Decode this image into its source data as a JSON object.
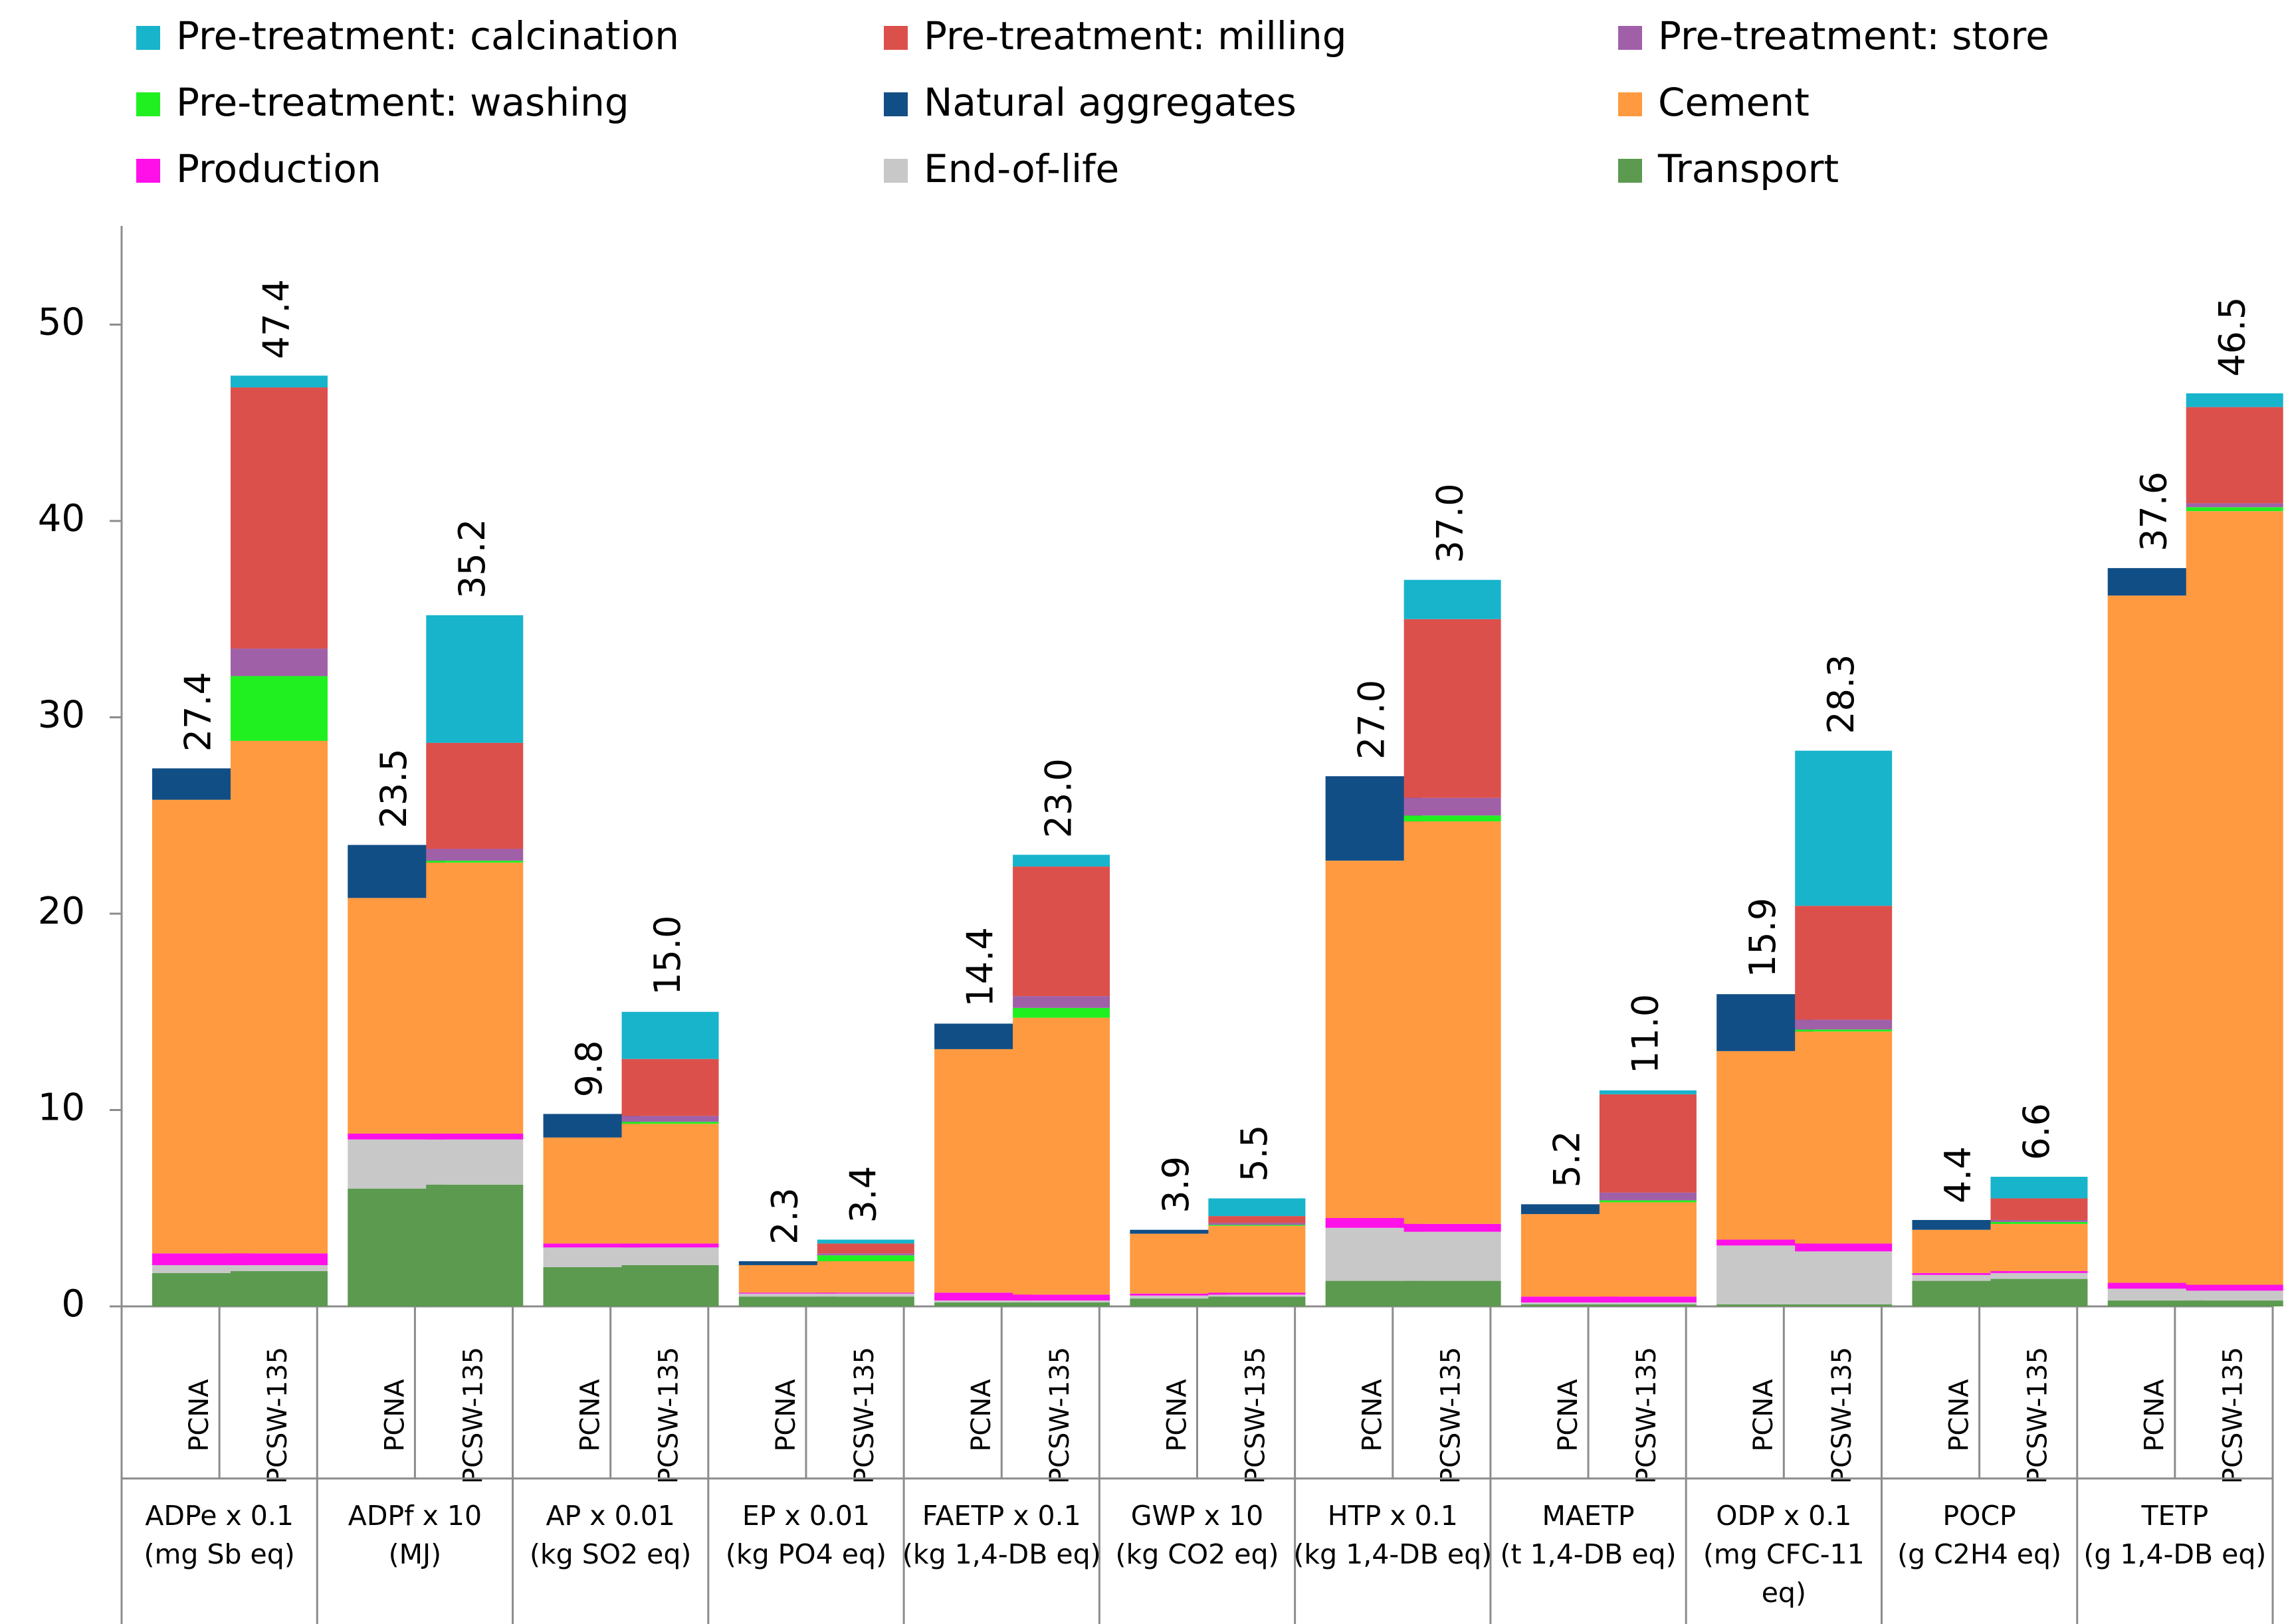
{
  "chart_data": {
    "type": "stacked-bar",
    "title": "",
    "xlabel": "",
    "ylabel": "",
    "ylim": [
      0,
      54
    ],
    "yticks": [
      0,
      10,
      20,
      30,
      40,
      50
    ],
    "grid": false,
    "legend_position": "top",
    "series": [
      {
        "name": "Transport",
        "color": "#5b9a4f"
      },
      {
        "name": "End-of-life",
        "color": "#c8c8c8"
      },
      {
        "name": "Production",
        "color": "#ff10e8"
      },
      {
        "name": "Cement",
        "color": "#ff9a40"
      },
      {
        "name": "Pre-treatment: washing",
        "color": "#20f020"
      },
      {
        "name": "Pre-treatment: store",
        "color": "#a060a8"
      },
      {
        "name": "Pre-treatment: milling",
        "color": "#dc504c"
      },
      {
        "name": "Pre-treatment: calcination",
        "color": "#18b4cc"
      },
      {
        "name": "Natural aggregates",
        "color": "#124e86"
      }
    ],
    "legend_order": [
      "Pre-treatment: calcination",
      "Pre-treatment: milling",
      "Pre-treatment: store",
      "Pre-treatment: washing",
      "Natural aggregates",
      "Cement",
      "Production",
      "End-of-life",
      "Transport"
    ],
    "categories": [
      {
        "line1": "ADPe x 0.1",
        "line2": "(mg Sb eq)",
        "line3": "",
        "bars": [
          {
            "condition": "PCNA",
            "total_label": "27.4",
            "values": [
              1.7,
              0.4,
              0.6,
              23.1,
              0,
              0,
              0,
              0,
              1.6
            ]
          },
          {
            "condition": "PCSW-135",
            "total_label": "47.4",
            "values": [
              1.8,
              0.3,
              0.6,
              26.1,
              3.3,
              1.4,
              13.3,
              0.6,
              0
            ]
          }
        ]
      },
      {
        "line1": "ADPf  x 10",
        "line2": "(MJ)",
        "line3": "",
        "bars": [
          {
            "condition": "PCNA",
            "total_label": "23.5",
            "values": [
              6.0,
              2.5,
              0.3,
              12.0,
              0,
              0,
              0,
              0,
              2.7
            ]
          },
          {
            "condition": "PCSW-135",
            "total_label": "35.2",
            "values": [
              6.2,
              2.3,
              0.3,
              13.8,
              0.1,
              0.6,
              5.4,
              6.5,
              0
            ]
          }
        ]
      },
      {
        "line1": "AP x 0.01",
        "line2": "(kg SO2 eq)",
        "line3": "",
        "bars": [
          {
            "condition": "PCNA",
            "total_label": "9.8",
            "values": [
              2.0,
              1.0,
              0.2,
              5.4,
              0,
              0,
              0,
              0,
              1.2
            ]
          },
          {
            "condition": "PCSW-135",
            "total_label": "15.0",
            "values": [
              2.1,
              0.9,
              0.2,
              6.1,
              0.1,
              0.3,
              2.9,
              2.4,
              0
            ]
          }
        ]
      },
      {
        "line1": "EP x 0.01",
        "line2": "(kg PO4 eq)",
        "line3": "",
        "bars": [
          {
            "condition": "PCNA",
            "total_label": "2.3",
            "values": [
              0.5,
              0.15,
              0.05,
              1.4,
              0,
              0,
              0,
              0,
              0.2
            ]
          },
          {
            "condition": "PCSW-135",
            "total_label": "3.4",
            "values": [
              0.5,
              0.15,
              0.05,
              1.6,
              0.3,
              0.1,
              0.5,
              0.2,
              0
            ]
          }
        ]
      },
      {
        "line1": "FAETP x 0.1",
        "line2": "(kg 1,4-DB eq)",
        "line3": "",
        "bars": [
          {
            "condition": "PCNA",
            "total_label": "14.4",
            "values": [
              0.2,
              0.1,
              0.4,
              12.4,
              0,
              0,
              0,
              0,
              1.3
            ]
          },
          {
            "condition": "PCSW-135",
            "total_label": "23.0",
            "values": [
              0.2,
              0.1,
              0.3,
              14.1,
              0.5,
              0.6,
              6.6,
              0.6,
              0
            ]
          }
        ]
      },
      {
        "line1": "GWP x 10",
        "line2": "(kg CO2 eq)",
        "line3": "",
        "bars": [
          {
            "condition": "PCNA",
            "total_label": "3.9",
            "values": [
              0.4,
              0.15,
              0.1,
              3.05,
              0,
              0,
              0,
              0,
              0.2
            ]
          },
          {
            "condition": "PCSW-135",
            "total_label": "5.5",
            "values": [
              0.5,
              0.1,
              0.1,
              3.4,
              0.05,
              0.1,
              0.35,
              0.9,
              0
            ]
          }
        ]
      },
      {
        "line1": "HTP x 0.1",
        "line2": "(kg 1,4-DB eq)",
        "line3": "",
        "bars": [
          {
            "condition": "PCNA",
            "total_label": "27.0",
            "values": [
              1.3,
              2.7,
              0.5,
              18.2,
              0,
              0,
              0,
              0,
              4.3
            ]
          },
          {
            "condition": "PCSW-135",
            "total_label": "37.0",
            "values": [
              1.3,
              2.5,
              0.4,
              20.5,
              0.3,
              0.9,
              9.1,
              2.0,
              0
            ]
          }
        ]
      },
      {
        "line1": "MAETP",
        "line2": "(t 1,4-DB eq)",
        "line3": "",
        "bars": [
          {
            "condition": "PCNA",
            "total_label": "5.2",
            "values": [
              0.1,
              0.1,
              0.3,
              4.2,
              0,
              0,
              0,
              0,
              0.5
            ]
          },
          {
            "condition": "PCSW-135",
            "total_label": "11.0",
            "values": [
              0.1,
              0.1,
              0.3,
              4.8,
              0.1,
              0.4,
              5.0,
              0.2,
              0
            ]
          }
        ]
      },
      {
        "line1": "ODP x 0.1",
        "line2": "(mg CFC-11",
        "line3": "eq)",
        "bars": [
          {
            "condition": "PCNA",
            "total_label": "15.9",
            "values": [
              0.1,
              3.0,
              0.3,
              9.6,
              0,
              0,
              0,
              0,
              2.9
            ]
          },
          {
            "condition": "PCSW-135",
            "total_label": "28.3",
            "values": [
              0.1,
              2.7,
              0.4,
              10.8,
              0.1,
              0.5,
              5.8,
              7.9,
              0
            ]
          }
        ]
      },
      {
        "line1": "POCP",
        "line2": "(g C2H4 eq)",
        "line3": "",
        "bars": [
          {
            "condition": "PCNA",
            "total_label": "4.4",
            "values": [
              1.3,
              0.3,
              0.1,
              2.2,
              0,
              0,
              0,
              0,
              0.5
            ]
          },
          {
            "condition": "PCSW-135",
            "total_label": "6.6",
            "values": [
              1.4,
              0.3,
              0.1,
              2.4,
              0.1,
              0.1,
              1.1,
              1.1,
              0
            ]
          }
        ]
      },
      {
        "line1": "TETP",
        "line2": "(g 1,4-DB eq)",
        "line3": "",
        "bars": [
          {
            "condition": "PCNA",
            "total_label": "37.6",
            "values": [
              0.3,
              0.6,
              0.3,
              35.0,
              0,
              0,
              0,
              0,
              1.4
            ]
          },
          {
            "condition": "PCSW-135",
            "total_label": "46.5",
            "values": [
              0.3,
              0.5,
              0.3,
              39.4,
              0.2,
              0.2,
              4.9,
              0.7,
              0
            ]
          }
        ]
      }
    ]
  }
}
